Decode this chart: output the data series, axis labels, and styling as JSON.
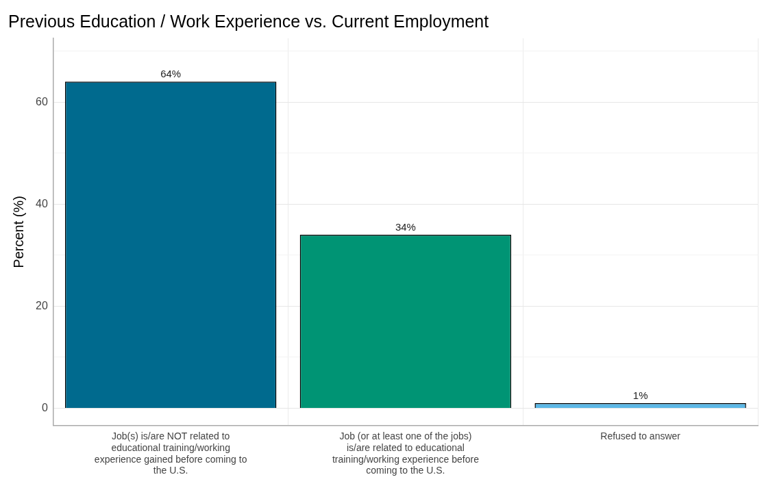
{
  "chart_data": {
    "type": "bar",
    "title": "Previous Education / Work Experience vs. Current Employment",
    "ylabel": "Percent (%)",
    "categories": [
      "Job(s) is/are NOT related to educational training/working experience gained before coming to the U.S.",
      "Job (or at least one of the jobs) is/are related to educational training/working experience before coming to the U.S.",
      "Refused to answer"
    ],
    "values": [
      64,
      34,
      1
    ],
    "colors": [
      "#006a8e",
      "#009474",
      "#5cb8e6"
    ],
    "value_labels": [
      "64%",
      "34%",
      "1%"
    ],
    "ylim": [
      -3.4,
      72.5
    ],
    "yticks": [
      0,
      {
        "value": 10,
        "label": null
      },
      20,
      {
        "value": 30,
        "label": null
      },
      40,
      {
        "value": 50,
        "label": null
      },
      60,
      {
        "value": 70,
        "label": null
      }
    ],
    "grid": true,
    "legend": false
  }
}
